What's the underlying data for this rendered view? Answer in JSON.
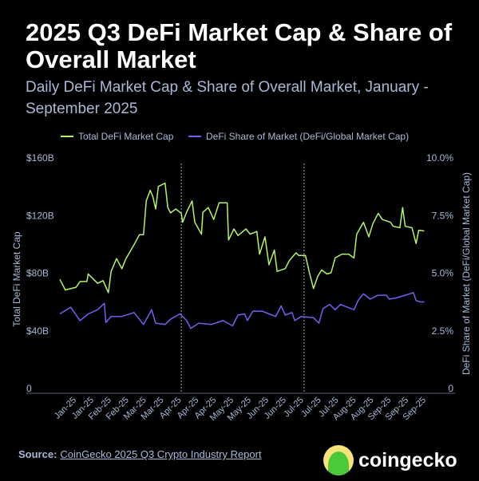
{
  "title": "2025 Q3 DeFi Market Cap & Share of Overall Market",
  "subtitle": "Daily DeFi Market Cap & Share of Overall Market, January - September 2025",
  "source": {
    "label": "Source:",
    "link_text": "CoinGecko 2025 Q3 Crypto Industry Report"
  },
  "logo": {
    "text": "coingecko"
  },
  "colors": {
    "green": "#b4f36a",
    "purple": "#7b5cf2",
    "text": "#a9b9d6"
  },
  "chart_data": {
    "type": "line",
    "title": "2025 Q3 DeFi Market Cap & Share of Overall Market",
    "legend_position": "top",
    "grid": false,
    "x_range": [
      "2025-01-01",
      "2025-09-30"
    ],
    "reference_lines_x": [
      "2025-04-01",
      "2025-07-01"
    ],
    "x_tick_labels": [
      "Jan-25",
      "Jan-25",
      "Feb-25",
      "Feb-25",
      "Mar-25",
      "Mar-25",
      "Apr-25",
      "Apr-25",
      "Apr-25",
      "May-25",
      "May-25",
      "Jun-25",
      "Jun-25",
      "Jul-25",
      "Jul-25",
      "Jul-25",
      "Aug-25",
      "Aug-25",
      "Sep-25",
      "Sep-25",
      "Sep-25"
    ],
    "y_left": {
      "label": "Total DeFi Market Cap",
      "range": [
        0,
        160
      ],
      "unit": "$B",
      "ticks": [
        "0",
        "$40B",
        "$80B",
        "$120B",
        "$160B"
      ]
    },
    "y_right": {
      "label": "DeFi Share of Market (DeFi/Global Market Cap)",
      "range": [
        0,
        10
      ],
      "unit": "%",
      "ticks": [
        "0",
        "2.5%",
        "5.0%",
        "7.5%",
        "10.0%"
      ]
    },
    "series": [
      {
        "name": "Total DeFi Market Cap",
        "axis": "left",
        "color": "#b4f36a",
        "x": [
          "2025-01-01",
          "2025-01-05",
          "2025-01-13",
          "2025-01-16",
          "2025-01-21",
          "2025-01-22",
          "2025-01-27",
          "2025-01-29",
          "2025-02-02",
          "2025-02-06",
          "2025-02-08",
          "2025-02-12",
          "2025-02-16",
          "2025-02-19",
          "2025-02-25",
          "2025-03-01",
          "2025-03-04",
          "2025-03-06",
          "2025-03-09",
          "2025-03-11",
          "2025-03-13",
          "2025-03-15",
          "2025-03-20",
          "2025-03-22",
          "2025-03-24",
          "2025-03-28",
          "2025-04-01",
          "2025-04-02",
          "2025-04-05",
          "2025-04-09",
          "2025-04-11",
          "2025-04-16",
          "2025-04-17",
          "2025-04-21",
          "2025-04-25",
          "2025-04-29",
          "2025-05-05",
          "2025-05-06",
          "2025-05-10",
          "2025-05-13",
          "2025-05-19",
          "2025-05-22",
          "2025-05-27",
          "2025-05-29",
          "2025-06-02",
          "2025-06-05",
          "2025-06-09",
          "2025-06-11",
          "2025-06-17",
          "2025-06-20",
          "2025-06-25",
          "2025-06-27",
          "2025-07-02",
          "2025-07-05",
          "2025-07-08",
          "2025-07-11",
          "2025-07-14",
          "2025-07-18",
          "2025-07-21",
          "2025-07-24",
          "2025-07-29",
          "2025-08-03",
          "2025-08-07",
          "2025-08-09",
          "2025-08-14",
          "2025-08-18",
          "2025-08-21",
          "2025-08-25",
          "2025-08-28",
          "2025-09-03",
          "2025-09-05",
          "2025-09-10",
          "2025-09-12",
          "2025-09-14",
          "2025-09-19",
          "2025-09-22",
          "2025-09-24",
          "2025-09-28"
        ],
        "values": [
          75.2,
          67.8,
          69.7,
          73.7,
          73.7,
          78.9,
          74.3,
          72.4,
          74.3,
          66,
          80.7,
          89.6,
          82.6,
          89.6,
          99.2,
          106.2,
          106.2,
          129.6,
          137,
          132.3,
          124,
          139.7,
          141.9,
          125,
          121.3,
          124,
          121,
          114.8,
          122,
          129.6,
          114.8,
          106.5,
          121.7,
          125,
          116.7,
          128.3,
          128.3,
          102.5,
          110.2,
          105.6,
          110.2,
          106.5,
          108.4,
          92.7,
          104.7,
          85.3,
          95.5,
          80.7,
          82.6,
          88.1,
          93.6,
          91.8,
          91.8,
          79.8,
          68.8,
          77,
          81.7,
          78.9,
          79.8,
          90,
          92.7,
          92.7,
          90,
          106.5,
          114.8,
          104.7,
          113.9,
          121,
          116.7,
          114.8,
          112,
          111,
          125,
          112,
          111,
          100,
          109.3,
          108.8
        ]
      },
      {
        "name": "DeFi Share of Market (DeFi/Global Market Cap)",
        "axis": "right",
        "color": "#7b5cf2",
        "x": [
          "2025-01-01",
          "2025-01-09",
          "2025-01-16",
          "2025-01-22",
          "2025-01-29",
          "2025-02-03",
          "2025-02-04",
          "2025-02-08",
          "2025-02-16",
          "2025-02-25",
          "2025-03-04",
          "2025-03-10",
          "2025-03-13",
          "2025-03-20",
          "2025-03-24",
          "2025-03-31",
          "2025-04-05",
          "2025-04-08",
          "2025-04-14",
          "2025-04-23",
          "2025-05-02",
          "2025-05-09",
          "2025-05-13",
          "2025-05-18",
          "2025-05-20",
          "2025-05-24",
          "2025-05-31",
          "2025-06-05",
          "2025-06-10",
          "2025-06-14",
          "2025-06-17",
          "2025-06-22",
          "2025-06-24",
          "2025-06-29",
          "2025-07-08",
          "2025-07-12",
          "2025-07-15",
          "2025-07-20",
          "2025-07-24",
          "2025-07-28",
          "2025-08-02",
          "2025-08-07",
          "2025-08-10",
          "2025-08-14",
          "2025-08-19",
          "2025-08-25",
          "2025-08-31",
          "2025-09-02",
          "2025-09-07",
          "2025-09-14",
          "2025-09-20",
          "2025-09-22",
          "2025-09-25",
          "2025-09-28"
        ],
        "values": [
          3.2,
          3.49,
          2.91,
          3.2,
          3.38,
          3.66,
          2.83,
          3.09,
          3.09,
          3.26,
          2.74,
          3.38,
          2.8,
          2.74,
          2.97,
          3.2,
          2.91,
          2.57,
          2.8,
          2.74,
          2.91,
          2.68,
          3.15,
          3.2,
          2.91,
          3.32,
          3.32,
          3.2,
          3.09,
          3.55,
          3.15,
          3.26,
          2.91,
          3.09,
          3.03,
          2.8,
          3.43,
          3.61,
          3.38,
          3.61,
          3.49,
          3.38,
          3.78,
          4.07,
          3.84,
          4.01,
          4.01,
          3.84,
          3.89,
          4.01,
          4.12,
          3.78,
          3.72,
          3.72
        ]
      }
    ]
  }
}
